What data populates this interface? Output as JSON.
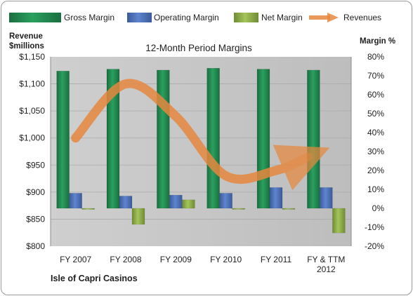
{
  "chart_data": {
    "type": "bar",
    "title": "12-Month Period Margins",
    "company": "Isle of Capri Casinos",
    "left_axis": {
      "label_line1": "Revenue",
      "label_line2": "$millions",
      "range": [
        800,
        1150
      ],
      "ticks": [
        "$1,150",
        "$1,100",
        "$1,050",
        "$1,000",
        "$950",
        "$900",
        "$850",
        "$800"
      ]
    },
    "right_axis": {
      "label": "Margin %",
      "range": [
        -20,
        80
      ],
      "ticks": [
        "80%",
        "70%",
        "60%",
        "50%",
        "40%",
        "30%",
        "20%",
        "10%",
        "0%",
        "-10%",
        "-20%"
      ]
    },
    "categories": [
      [
        "FY 2007"
      ],
      [
        "FY 2008"
      ],
      [
        "FY 2009"
      ],
      [
        "FY 2010"
      ],
      [
        "FY 2011"
      ],
      [
        "FY & TTM",
        "2012"
      ]
    ],
    "series": [
      {
        "name": "Gross Margin",
        "type": "bar",
        "axis": "right",
        "values": [
          72.5,
          73.5,
          73,
          74,
          73.5,
          73
        ]
      },
      {
        "name": "Operating Margin",
        "type": "bar",
        "axis": "right",
        "values": [
          8,
          6.5,
          7,
          8,
          11,
          11
        ]
      },
      {
        "name": "Net Margin",
        "type": "bar",
        "axis": "right",
        "values": [
          -0.5,
          -8.5,
          4.5,
          -0.5,
          -0.5,
          -13
        ]
      },
      {
        "name": "Revenues",
        "type": "line",
        "axis": "left",
        "values": [
          1000,
          1100,
          1040,
          930,
          940,
          965
        ]
      }
    ],
    "legend_position": "top",
    "grid": true,
    "colors": {
      "gross": "#238a50",
      "operating": "#4f73ba",
      "net": "#8fb14a",
      "revenue": "#e5883f",
      "plot_bg": "#c9c9c9"
    }
  }
}
